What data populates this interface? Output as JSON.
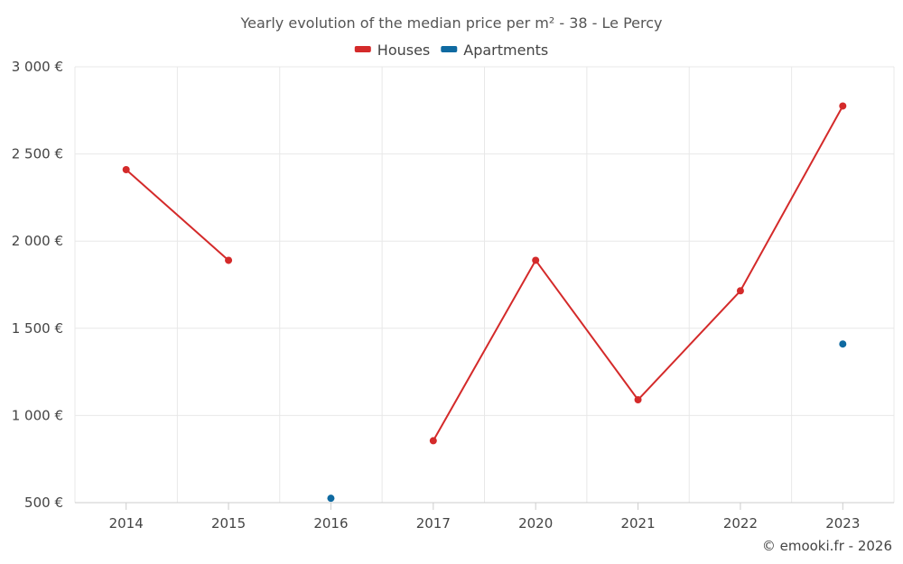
{
  "chart_data": {
    "type": "line",
    "title": "Yearly evolution of the median price per m² - 38 - Le Percy",
    "categories": [
      "2014",
      "2015",
      "2016",
      "2017",
      "2020",
      "2021",
      "2022",
      "2023"
    ],
    "series": [
      {
        "name": "Houses",
        "color": "#d42a2a",
        "values": [
          2410,
          1890,
          null,
          855,
          1890,
          1090,
          1715,
          2775
        ]
      },
      {
        "name": "Apartments",
        "color": "#0f6aa1",
        "values": [
          null,
          null,
          525,
          null,
          null,
          null,
          null,
          1410
        ]
      }
    ],
    "y_ticks": [
      500,
      1000,
      1500,
      2000,
      2500,
      3000
    ],
    "y_tick_labels": [
      "500 €",
      "1 000 €",
      "1 500 €",
      "2 000 €",
      "2 500 €",
      "3 000 €"
    ],
    "ylim": [
      500,
      3000
    ],
    "xlabel": "",
    "ylabel": "",
    "grid": true,
    "legend_position": "top-center"
  },
  "credit": "© emooki.fr - 2026"
}
